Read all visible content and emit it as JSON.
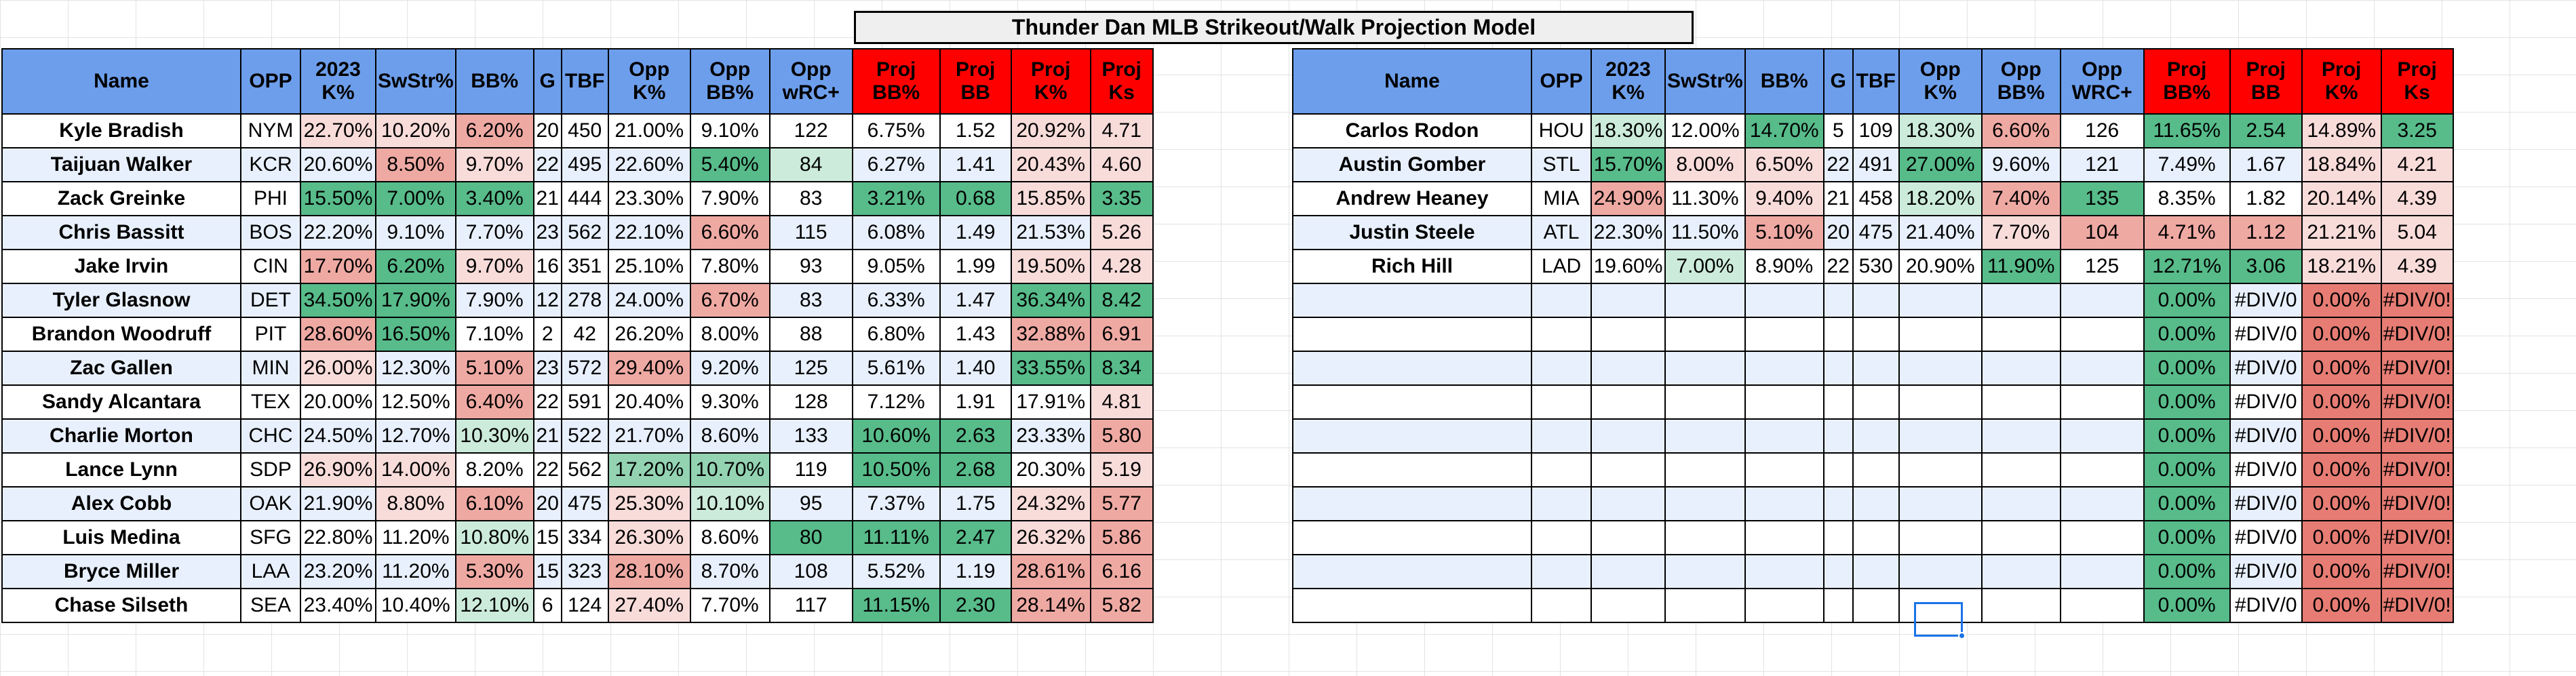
{
  "title": "Thunder Dan MLB Strikeout/Walk Projection Model",
  "left_table": {
    "headers": [
      "Name",
      "OPP",
      "2023 K%",
      "SwStr%",
      "BB%",
      "G",
      "TBF",
      "Opp K%",
      "Opp BB%",
      "Opp wRC+",
      "Proj BB%",
      "Proj BB",
      "Proj K%",
      "Proj Ks"
    ],
    "rows": [
      [
        "Kyle Bradish",
        "NYM",
        "22.70%",
        "10.20%",
        "6.20%",
        "20",
        "450",
        "21.00%",
        "9.10%",
        "122",
        "6.75%",
        "1.52",
        "20.92%",
        "4.71"
      ],
      [
        "Taijuan Walker",
        "KCR",
        "20.60%",
        "8.50%",
        "9.70%",
        "22",
        "495",
        "22.60%",
        "5.40%",
        "84",
        "6.27%",
        "1.41",
        "20.43%",
        "4.60"
      ],
      [
        "Zack Greinke",
        "PHI",
        "15.50%",
        "7.00%",
        "3.40%",
        "21",
        "444",
        "23.30%",
        "7.90%",
        "83",
        "3.21%",
        "0.68",
        "15.85%",
        "3.35"
      ],
      [
        "Chris Bassitt",
        "BOS",
        "22.20%",
        "9.10%",
        "7.70%",
        "23",
        "562",
        "22.10%",
        "6.60%",
        "115",
        "6.08%",
        "1.49",
        "21.53%",
        "5.26"
      ],
      [
        "Jake Irvin",
        "CIN",
        "17.70%",
        "6.20%",
        "9.70%",
        "16",
        "351",
        "25.10%",
        "7.80%",
        "93",
        "9.05%",
        "1.99",
        "19.50%",
        "4.28"
      ],
      [
        "Tyler Glasnow",
        "DET",
        "34.50%",
        "17.90%",
        "7.90%",
        "12",
        "278",
        "24.00%",
        "6.70%",
        "83",
        "6.33%",
        "1.47",
        "36.34%",
        "8.42"
      ],
      [
        "Brandon Woodruff",
        "PIT",
        "28.60%",
        "16.50%",
        "7.10%",
        "2",
        "42",
        "26.20%",
        "8.00%",
        "88",
        "6.80%",
        "1.43",
        "32.88%",
        "6.91"
      ],
      [
        "Zac Gallen",
        "MIN",
        "26.00%",
        "12.30%",
        "5.10%",
        "23",
        "572",
        "29.40%",
        "9.20%",
        "125",
        "5.61%",
        "1.40",
        "33.55%",
        "8.34"
      ],
      [
        "Sandy Alcantara",
        "TEX",
        "20.00%",
        "12.50%",
        "6.40%",
        "22",
        "591",
        "20.40%",
        "9.30%",
        "128",
        "7.12%",
        "1.91",
        "17.91%",
        "4.81"
      ],
      [
        "Charlie Morton",
        "CHC",
        "24.50%",
        "12.70%",
        "10.30%",
        "21",
        "522",
        "21.70%",
        "8.60%",
        "133",
        "10.60%",
        "2.63",
        "23.33%",
        "5.80"
      ],
      [
        "Lance Lynn",
        "SDP",
        "26.90%",
        "14.00%",
        "8.20%",
        "22",
        "562",
        "17.20%",
        "10.70%",
        "119",
        "10.50%",
        "2.68",
        "20.30%",
        "5.19"
      ],
      [
        "Alex Cobb",
        "OAK",
        "21.90%",
        "8.80%",
        "6.10%",
        "20",
        "475",
        "25.30%",
        "10.10%",
        "95",
        "7.37%",
        "1.75",
        "24.32%",
        "5.77"
      ],
      [
        "Luis Medina",
        "SFG",
        "22.80%",
        "11.20%",
        "10.80%",
        "15",
        "334",
        "26.30%",
        "8.60%",
        "80",
        "11.11%",
        "2.47",
        "26.32%",
        "5.86"
      ],
      [
        "Bryce Miller",
        "LAA",
        "23.20%",
        "11.20%",
        "5.30%",
        "15",
        "323",
        "28.10%",
        "8.70%",
        "108",
        "5.52%",
        "1.19",
        "28.61%",
        "6.16"
      ],
      [
        "Chase Silseth",
        "SEA",
        "23.40%",
        "10.40%",
        "12.10%",
        "6",
        "124",
        "27.40%",
        "7.70%",
        "117",
        "11.15%",
        "2.30",
        "28.14%",
        "5.82"
      ]
    ]
  },
  "right_table": {
    "headers": [
      "Name",
      "OPP",
      "2023 K%",
      "SwStr%",
      "BB%",
      "G",
      "TBF",
      "Opp K%",
      "Opp BB%",
      "Opp WRC+",
      "Proj BB%",
      "Proj BB",
      "Proj K%",
      "Proj Ks"
    ],
    "rows": [
      [
        "Carlos Rodon",
        "HOU",
        "18.30%",
        "12.00%",
        "14.70%",
        "5",
        "109",
        "18.30%",
        "6.60%",
        "126",
        "11.65%",
        "2.54",
        "14.89%",
        "3.25"
      ],
      [
        "Austin Gomber",
        "STL",
        "15.70%",
        "8.00%",
        "6.50%",
        "22",
        "491",
        "27.00%",
        "9.60%",
        "121",
        "7.49%",
        "1.67",
        "18.84%",
        "4.21"
      ],
      [
        "Andrew Heaney",
        "MIA",
        "24.90%",
        "11.30%",
        "9.40%",
        "21",
        "458",
        "18.20%",
        "7.40%",
        "135",
        "8.35%",
        "1.82",
        "20.14%",
        "4.39"
      ],
      [
        "Justin Steele",
        "ATL",
        "22.30%",
        "11.50%",
        "5.10%",
        "20",
        "475",
        "21.40%",
        "7.70%",
        "104",
        "4.71%",
        "1.12",
        "21.21%",
        "5.04"
      ],
      [
        "Rich Hill",
        "LAD",
        "19.60%",
        "7.00%",
        "8.90%",
        "22",
        "530",
        "20.90%",
        "11.90%",
        "125",
        "12.71%",
        "3.06",
        "18.21%",
        "4.39"
      ],
      [
        "",
        "",
        "",
        "",
        "",
        "",
        "",
        "",
        "",
        "",
        "0.00%",
        "#DIV/0",
        "0.00%",
        "#DIV/0!"
      ],
      [
        "",
        "",
        "",
        "",
        "",
        "",
        "",
        "",
        "",
        "",
        "0.00%",
        "#DIV/0",
        "0.00%",
        "#DIV/0!"
      ],
      [
        "",
        "",
        "",
        "",
        "",
        "",
        "",
        "",
        "",
        "",
        "0.00%",
        "#DIV/0",
        "0.00%",
        "#DIV/0!"
      ],
      [
        "",
        "",
        "",
        "",
        "",
        "",
        "",
        "",
        "",
        "",
        "0.00%",
        "#DIV/0",
        "0.00%",
        "#DIV/0!"
      ],
      [
        "",
        "",
        "",
        "",
        "",
        "",
        "",
        "",
        "",
        "",
        "0.00%",
        "#DIV/0",
        "0.00%",
        "#DIV/0!"
      ],
      [
        "",
        "",
        "",
        "",
        "",
        "",
        "",
        "",
        "",
        "",
        "0.00%",
        "#DIV/0",
        "0.00%",
        "#DIV/0!"
      ],
      [
        "",
        "",
        "",
        "",
        "",
        "",
        "",
        "",
        "",
        "",
        "0.00%",
        "#DIV/0",
        "0.00%",
        "#DIV/0!"
      ],
      [
        "",
        "",
        "",
        "",
        "",
        "",
        "",
        "",
        "",
        "",
        "0.00%",
        "#DIV/0",
        "0.00%",
        "#DIV/0!"
      ],
      [
        "",
        "",
        "",
        "",
        "",
        "",
        "",
        "",
        "",
        "",
        "0.00%",
        "#DIV/0",
        "0.00%",
        "#DIV/0!"
      ],
      [
        "",
        "",
        "",
        "",
        "",
        "",
        "",
        "",
        "",
        "",
        "0.00%",
        "#DIV/0",
        "0.00%",
        "#DIV/0!"
      ]
    ]
  },
  "colors": {
    "header_blue": "#6d9eeb",
    "header_red": "#ff0000",
    "row_band_a": "#ffffff",
    "row_band_b": "#e8f0fe",
    "green_strong": "#57bb8a",
    "green_mid": "#93d3b2",
    "green_light": "#ccebdb",
    "red_strong": "#e67c73",
    "red_mid": "#efa9a3",
    "red_light": "#f8dcda",
    "selection": "#1a73e8"
  },
  "cell_fills": {
    "left": [
      [
        "",
        "",
        "l",
        "l",
        "m",
        "",
        "",
        "",
        "",
        "",
        "",
        "",
        "l",
        "l"
      ],
      [
        "",
        "",
        "",
        "m",
        "l",
        "",
        "",
        "",
        "S",
        "L",
        "",
        "",
        "l",
        "l"
      ],
      [
        "",
        "",
        "S",
        "S",
        "S",
        "",
        "",
        "",
        "",
        "",
        "S",
        "S",
        "l",
        "S"
      ],
      [
        "",
        "",
        "",
        "",
        "",
        "",
        "",
        "",
        "m",
        "",
        "",
        "",
        "",
        "b"
      ],
      [
        "",
        "",
        "m",
        "S",
        "l",
        "",
        "",
        "",
        "",
        "",
        "",
        "",
        "l",
        "l"
      ],
      [
        "",
        "",
        "S",
        "S",
        "",
        "",
        "",
        "",
        "m",
        "",
        "",
        "",
        "S",
        "S"
      ],
      [
        "",
        "",
        "m",
        "S",
        "",
        "",
        "",
        "",
        "",
        "",
        "",
        "",
        "m",
        "m"
      ],
      [
        "",
        "",
        "l",
        "",
        "m",
        "",
        "",
        "m",
        "",
        "",
        "",
        "",
        "S",
        "S"
      ],
      [
        "",
        "",
        "",
        "",
        "m",
        "",
        "",
        "",
        "",
        "",
        "",
        "",
        "",
        "b"
      ],
      [
        "",
        "",
        "",
        "",
        "L",
        "",
        "",
        "",
        "",
        "",
        "S",
        "S",
        "",
        "m"
      ],
      [
        "",
        "",
        "l",
        "l",
        "",
        "",
        "",
        "M",
        "M",
        "",
        "S",
        "S",
        "",
        "b"
      ],
      [
        "",
        "",
        "",
        "l",
        "m",
        "",
        "",
        "l",
        "L",
        "",
        "",
        "",
        "l",
        "m"
      ],
      [
        "",
        "",
        "",
        "",
        "L",
        "",
        "",
        "l",
        "",
        "S",
        "S",
        "S",
        "l",
        "m"
      ],
      [
        "",
        "",
        "",
        "",
        "m",
        "",
        "",
        "m",
        "",
        "",
        "",
        "",
        "m",
        "m"
      ],
      [
        "",
        "",
        "",
        "",
        "L",
        "",
        "",
        "l",
        "",
        "",
        "S",
        "S",
        "m",
        "m"
      ]
    ],
    "right": [
      [
        "",
        "",
        "L",
        "",
        "S",
        "",
        "",
        "L",
        "m",
        "",
        "S",
        "S",
        "l",
        "S"
      ],
      [
        "",
        "",
        "S",
        "l",
        "l",
        "",
        "",
        "S",
        "",
        "",
        "",
        "",
        "l",
        "l"
      ],
      [
        "",
        "",
        "m",
        "",
        "l",
        "",
        "",
        "L",
        "m",
        "S",
        "",
        "",
        "l",
        "l"
      ],
      [
        "",
        "",
        "",
        "",
        "m",
        "",
        "",
        "",
        "l",
        "m",
        "m",
        "m",
        "l",
        "b"
      ],
      [
        "",
        "",
        "",
        "L",
        "",
        "",
        "",
        "",
        "S",
        "",
        "S",
        "S",
        "l",
        "l"
      ],
      [
        "",
        "",
        "",
        "",
        "",
        "",
        "",
        "",
        "",
        "",
        "G",
        "",
        "R",
        "R"
      ],
      [
        "",
        "",
        "",
        "",
        "",
        "",
        "",
        "",
        "",
        "",
        "G",
        "",
        "R",
        "R"
      ],
      [
        "",
        "",
        "",
        "",
        "",
        "",
        "",
        "",
        "",
        "",
        "G",
        "",
        "R",
        "R"
      ],
      [
        "",
        "",
        "",
        "",
        "",
        "",
        "",
        "",
        "",
        "",
        "G",
        "",
        "R",
        "R"
      ],
      [
        "",
        "",
        "",
        "",
        "",
        "",
        "",
        "",
        "",
        "",
        "G",
        "",
        "R",
        "R"
      ],
      [
        "",
        "",
        "",
        "",
        "",
        "",
        "",
        "",
        "",
        "",
        "G",
        "",
        "R",
        "R"
      ],
      [
        "",
        "",
        "",
        "",
        "",
        "",
        "",
        "",
        "",
        "",
        "G",
        "",
        "R",
        "R"
      ],
      [
        "",
        "",
        "",
        "",
        "",
        "",
        "",
        "",
        "",
        "",
        "G",
        "",
        "R",
        "R"
      ],
      [
        "",
        "",
        "",
        "",
        "",
        "",
        "",
        "",
        "",
        "",
        "G",
        "",
        "R",
        "R"
      ],
      [
        "",
        "",
        "",
        "",
        "",
        "",
        "",
        "",
        "",
        "",
        "G",
        "",
        "R",
        "R"
      ]
    ]
  }
}
